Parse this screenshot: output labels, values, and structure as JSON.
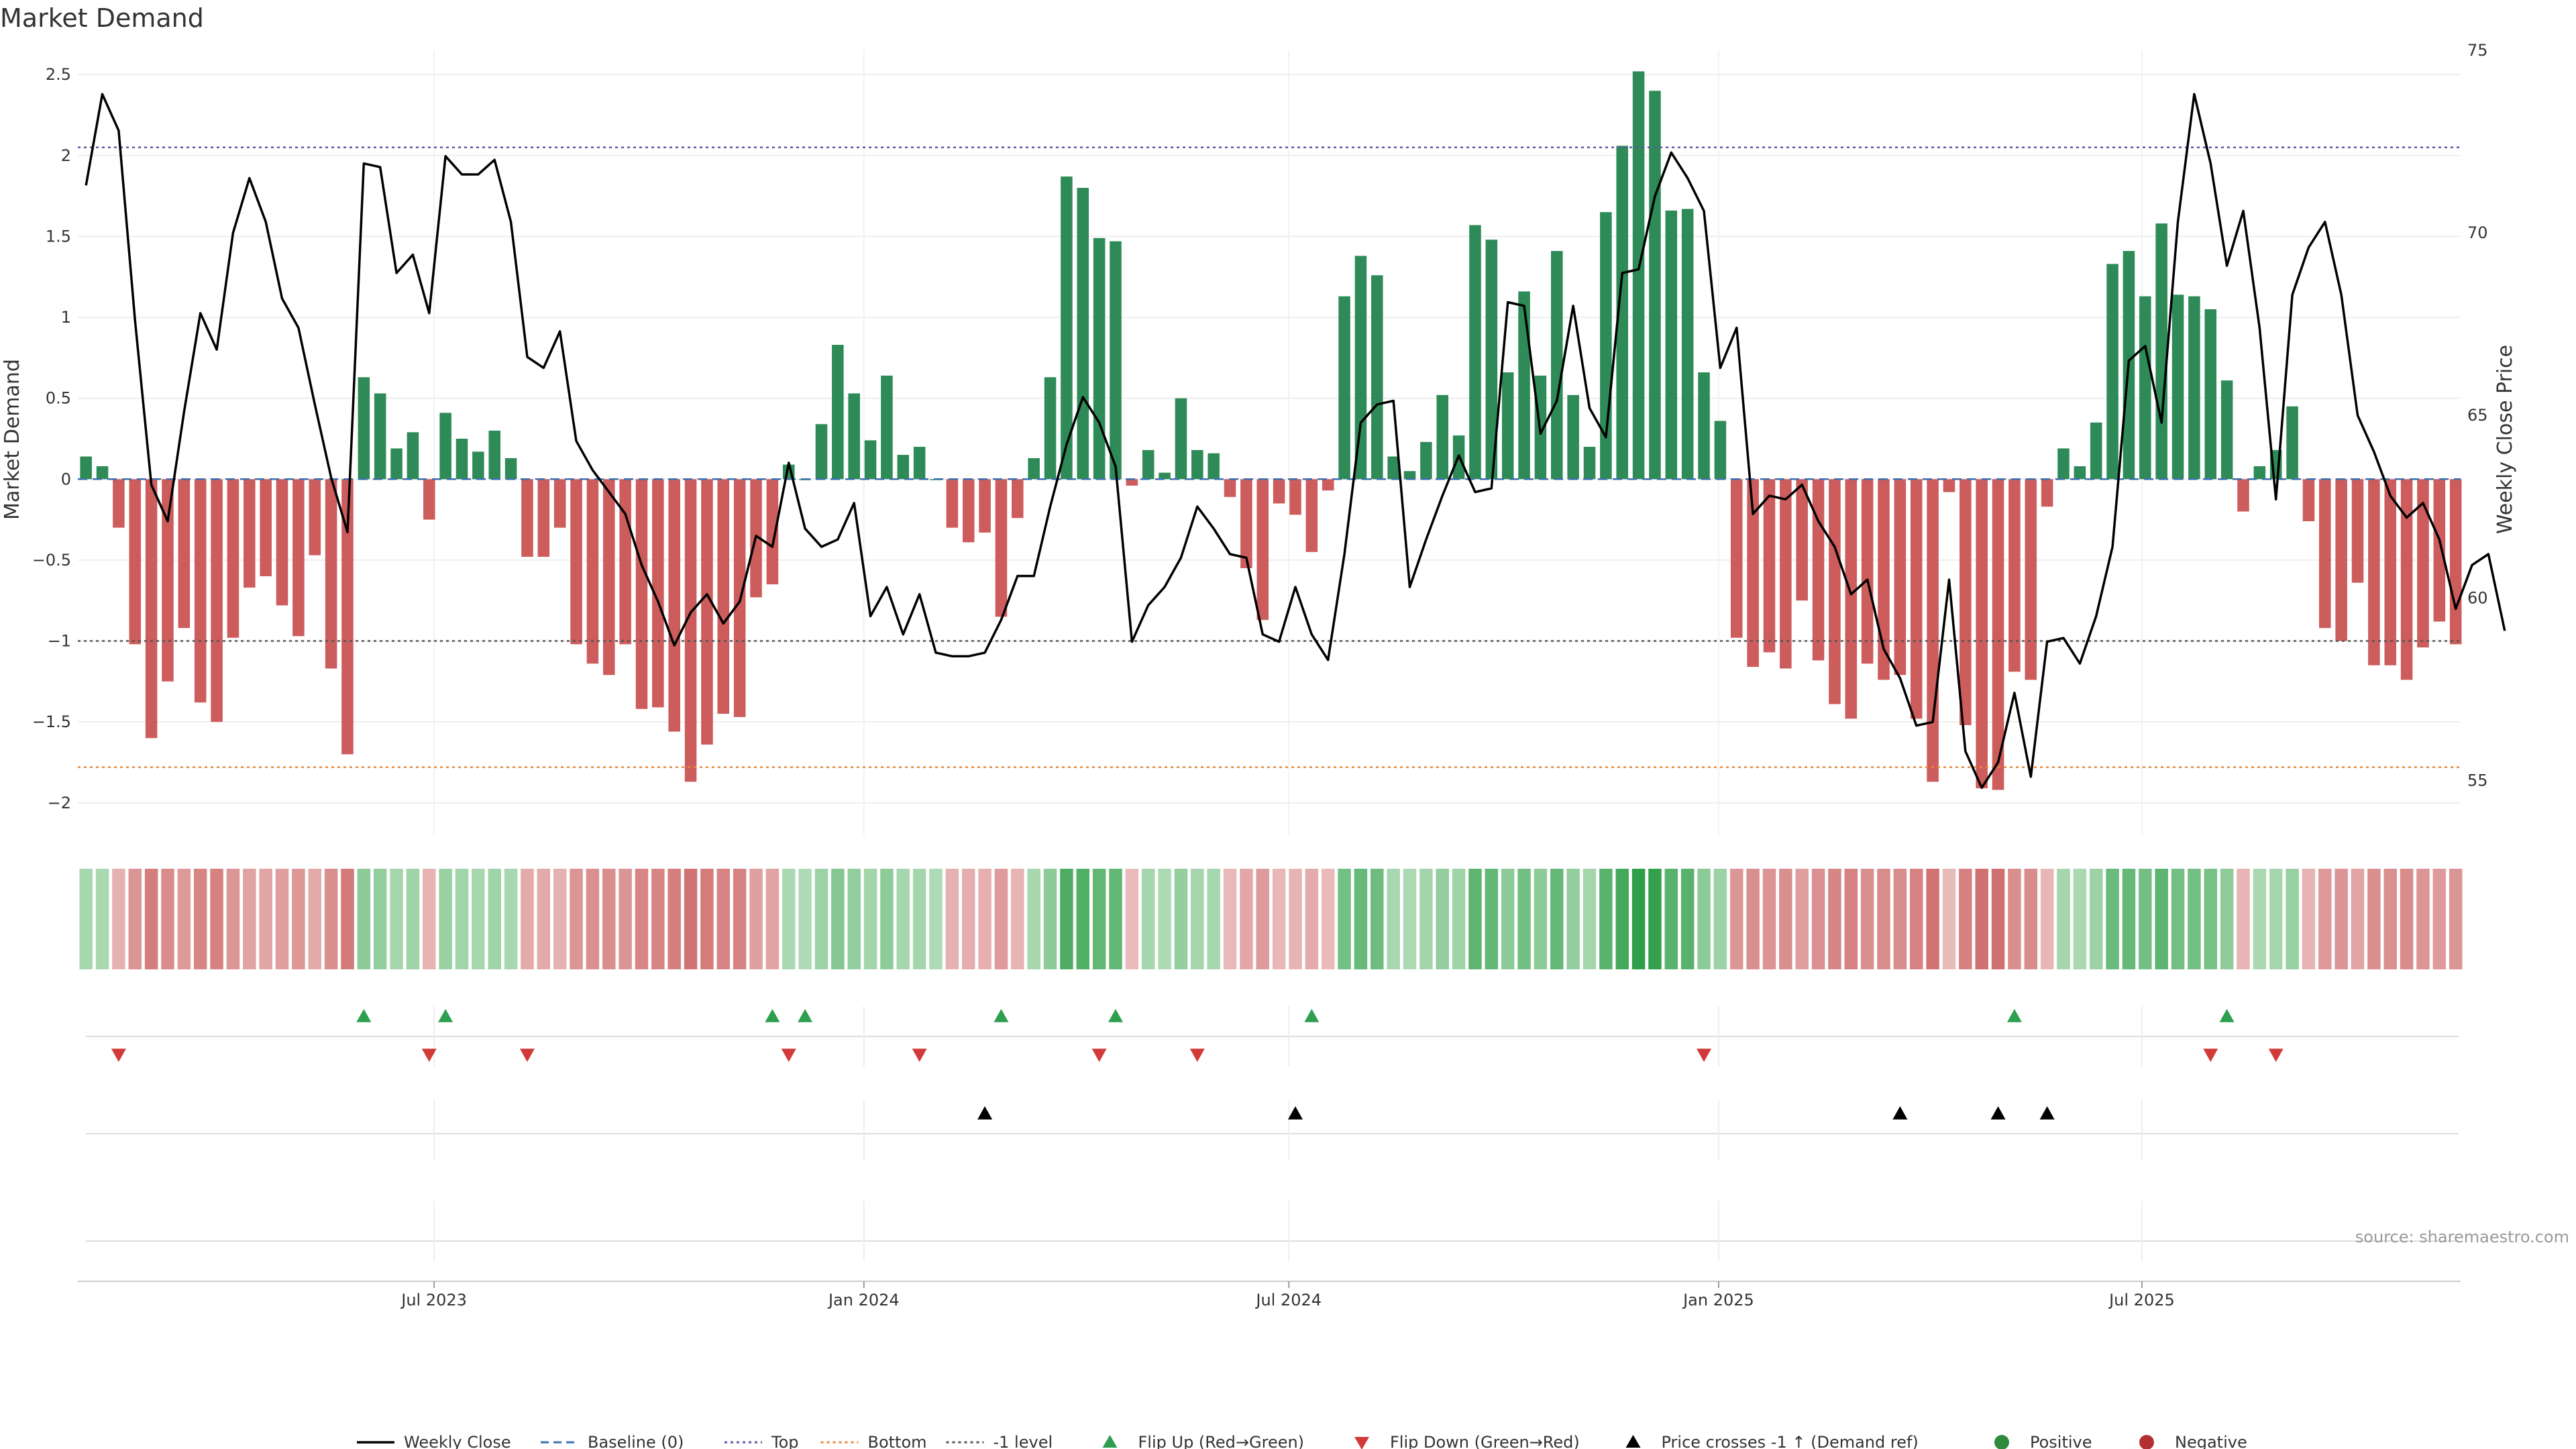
{
  "chart_data": {
    "type": "bar",
    "title": "Market Demand",
    "source": "source: sharemaestro.com",
    "ylabel": "Market Demand",
    "y2label": "Weekly Close Price",
    "ylim": [
      -2.2,
      2.65
    ],
    "y2lim": [
      53.5,
      75
    ],
    "yticks": [
      2.5,
      2,
      1.5,
      1,
      0.5,
      0,
      -0.5,
      -1,
      -1.5,
      -2
    ],
    "yticklabels": [
      "2.5",
      "2",
      "1.5",
      "1",
      "0.5",
      "0",
      "−0.5",
      "−1",
      "−1.5",
      "−2"
    ],
    "y2ticks": [
      75,
      70,
      65,
      60,
      55
    ],
    "y2ticklabels": [
      "75",
      "70",
      "65",
      "60",
      "55"
    ],
    "reference_lines": {
      "top": 2.05,
      "bottom": -1.78,
      "minus_one": -1,
      "baseline": 0
    },
    "start_date": "2023-03-06",
    "xticks": [
      {
        "label": "Jul 2023",
        "week": 21.3
      },
      {
        "label": "Jan 2024",
        "week": 47.6
      },
      {
        "label": "Jul 2024",
        "week": 73.6
      },
      {
        "label": "Jan 2025",
        "week": 99.9
      },
      {
        "label": "Jul 2025",
        "week": 125.8
      }
    ],
    "series": [
      {
        "name": "Market Demand",
        "values": [
          0.14,
          0.08,
          -0.3,
          -1.02,
          -1.6,
          -1.25,
          -0.92,
          -1.38,
          -1.5,
          -0.98,
          -0.67,
          -0.6,
          -0.78,
          -0.97,
          -0.47,
          -1.17,
          -1.7,
          0.63,
          0.53,
          0.19,
          0.29,
          -0.25,
          0.41,
          0.25,
          0.17,
          0.3,
          0.13,
          -0.48,
          -0.48,
          -0.3,
          -1.02,
          -1.14,
          -1.21,
          -1.02,
          -1.42,
          -1.41,
          -1.56,
          -1.87,
          -1.64,
          -1.45,
          -1.47,
          -0.73,
          -0.65,
          0.09,
          0,
          0.34,
          0.83,
          0.53,
          0.24,
          0.64,
          0.15,
          0.2,
          0,
          -0.3,
          -0.39,
          -0.33,
          -0.85,
          -0.24,
          0.13,
          0.63,
          1.87,
          1.8,
          1.49,
          1.47,
          -0.04,
          0.18,
          0.04,
          0.5,
          0.18,
          0.16,
          -0.11,
          -0.55,
          -0.87,
          -0.15,
          -0.22,
          -0.45,
          -0.07,
          1.13,
          1.38,
          1.26,
          0.14,
          0.05,
          0.23,
          0.52,
          0.27,
          1.57,
          1.48,
          0.66,
          1.16,
          0.64,
          1.41,
          0.52,
          0.2,
          1.65,
          2.06,
          2.52,
          2.4,
          1.66,
          1.67,
          0.66,
          0.36,
          -0.98,
          -1.16,
          -1.07,
          -1.17,
          -0.75,
          -1.12,
          -1.39,
          -1.48,
          -1.14,
          -1.24,
          -1.21,
          -1.48,
          -1.87,
          -0.08,
          -1.52,
          -1.91,
          -1.92,
          -1.19,
          -1.24,
          -0.17,
          0.19,
          0.08,
          0.35,
          1.33,
          1.41,
          1.13,
          1.58,
          1.14,
          1.13,
          1.05,
          0.61,
          -0.2,
          0.08,
          0.18,
          0.45,
          -0.26,
          -0.92,
          -1.0,
          -0.64,
          -1.15,
          -1.15,
          -1.24,
          -1.04,
          -0.88,
          -1.02
        ]
      },
      {
        "name": "Weekly Close",
        "values": [
          71.3,
          73.8,
          72.8,
          67.6,
          63.1,
          62.1,
          65.1,
          67.8,
          66.8,
          70.0,
          71.5,
          70.3,
          68.2,
          67.4,
          65.3,
          63.3,
          61.8,
          71.9,
          71.8,
          68.9,
          69.4,
          67.8,
          72.1,
          71.6,
          71.6,
          72.0,
          70.3,
          66.6,
          66.3,
          67.3,
          64.3,
          63.5,
          62.9,
          62.3,
          60.9,
          59.9,
          58.7,
          59.6,
          60.1,
          59.3,
          59.9,
          61.7,
          61.4,
          63.7,
          61.9,
          61.4,
          61.6,
          62.6,
          59.5,
          60.3,
          59.0,
          60.1,
          58.5,
          58.4,
          58.4,
          58.5,
          59.4,
          60.6,
          60.6,
          62.5,
          64.2,
          65.5,
          64.8,
          63.6,
          58.8,
          59.8,
          60.3,
          61.1,
          62.5,
          61.9,
          61.2,
          61.1,
          59.0,
          58.8,
          60.3,
          59.0,
          58.3,
          61.2,
          64.8,
          65.3,
          65.4,
          60.3,
          61.6,
          62.8,
          63.9,
          62.9,
          63.0,
          68.1,
          68.0,
          64.5,
          65.4,
          68.0,
          65.2,
          64.4,
          68.9,
          69.0,
          71.0,
          72.2,
          71.5,
          70.6,
          66.3,
          67.4,
          62.3,
          62.8,
          62.7,
          63.1,
          62.1,
          61.4,
          60.1,
          60.5,
          58.6,
          57.8,
          56.5,
          56.6,
          60.5,
          55.8,
          54.8,
          55.5,
          57.4,
          55.1,
          58.8,
          58.9,
          58.2,
          59.5,
          61.4,
          66.5,
          66.9,
          64.8,
          70.3,
          73.8,
          71.9,
          69.1,
          70.6,
          67.4,
          62.7,
          68.3,
          69.6,
          70.3,
          68.3,
          65.0,
          64.0,
          62.8,
          62.2,
          62.6,
          61.6,
          59.7,
          60.9,
          61.2,
          59.1
        ]
      }
    ],
    "flip_up_weeks": [
      17,
      22,
      42,
      44,
      56,
      63,
      75,
      118,
      131
    ],
    "flip_down_weeks": [
      2,
      21,
      27,
      43,
      51,
      62,
      68,
      99,
      130,
      134
    ],
    "price_cross_weeks": [
      55,
      74,
      111,
      117,
      120
    ],
    "legend": [
      {
        "label": "Weekly Close",
        "kind": "line",
        "color": "#000000"
      },
      {
        "label": "Baseline (0)",
        "kind": "dash",
        "color": "#3b6fb0"
      },
      {
        "label": "Top",
        "kind": "dot",
        "color": "#5a5aaa"
      },
      {
        "label": "Bottom",
        "kind": "dot",
        "color": "#e8893a"
      },
      {
        "label": "-1 level",
        "kind": "dot",
        "color": "#555555"
      },
      {
        "label": "Flip Up (Red→Green)",
        "kind": "tri-up",
        "color": "#2e9e4f"
      },
      {
        "label": "Flip Down (Green→Red)",
        "kind": "tri-down",
        "color": "#d23a3a"
      },
      {
        "label": "Price crosses -1 ↑ (Demand ref)",
        "kind": "tri-up",
        "color": "#000000"
      },
      {
        "label": "Positive",
        "kind": "circle",
        "color": "#2e8b3e"
      },
      {
        "label": "Negative",
        "kind": "circle",
        "color": "#b23030"
      }
    ],
    "colors": {
      "positive": "#2e8b57",
      "negative": "#cd5c5c",
      "grid": "#eeeeee"
    }
  }
}
